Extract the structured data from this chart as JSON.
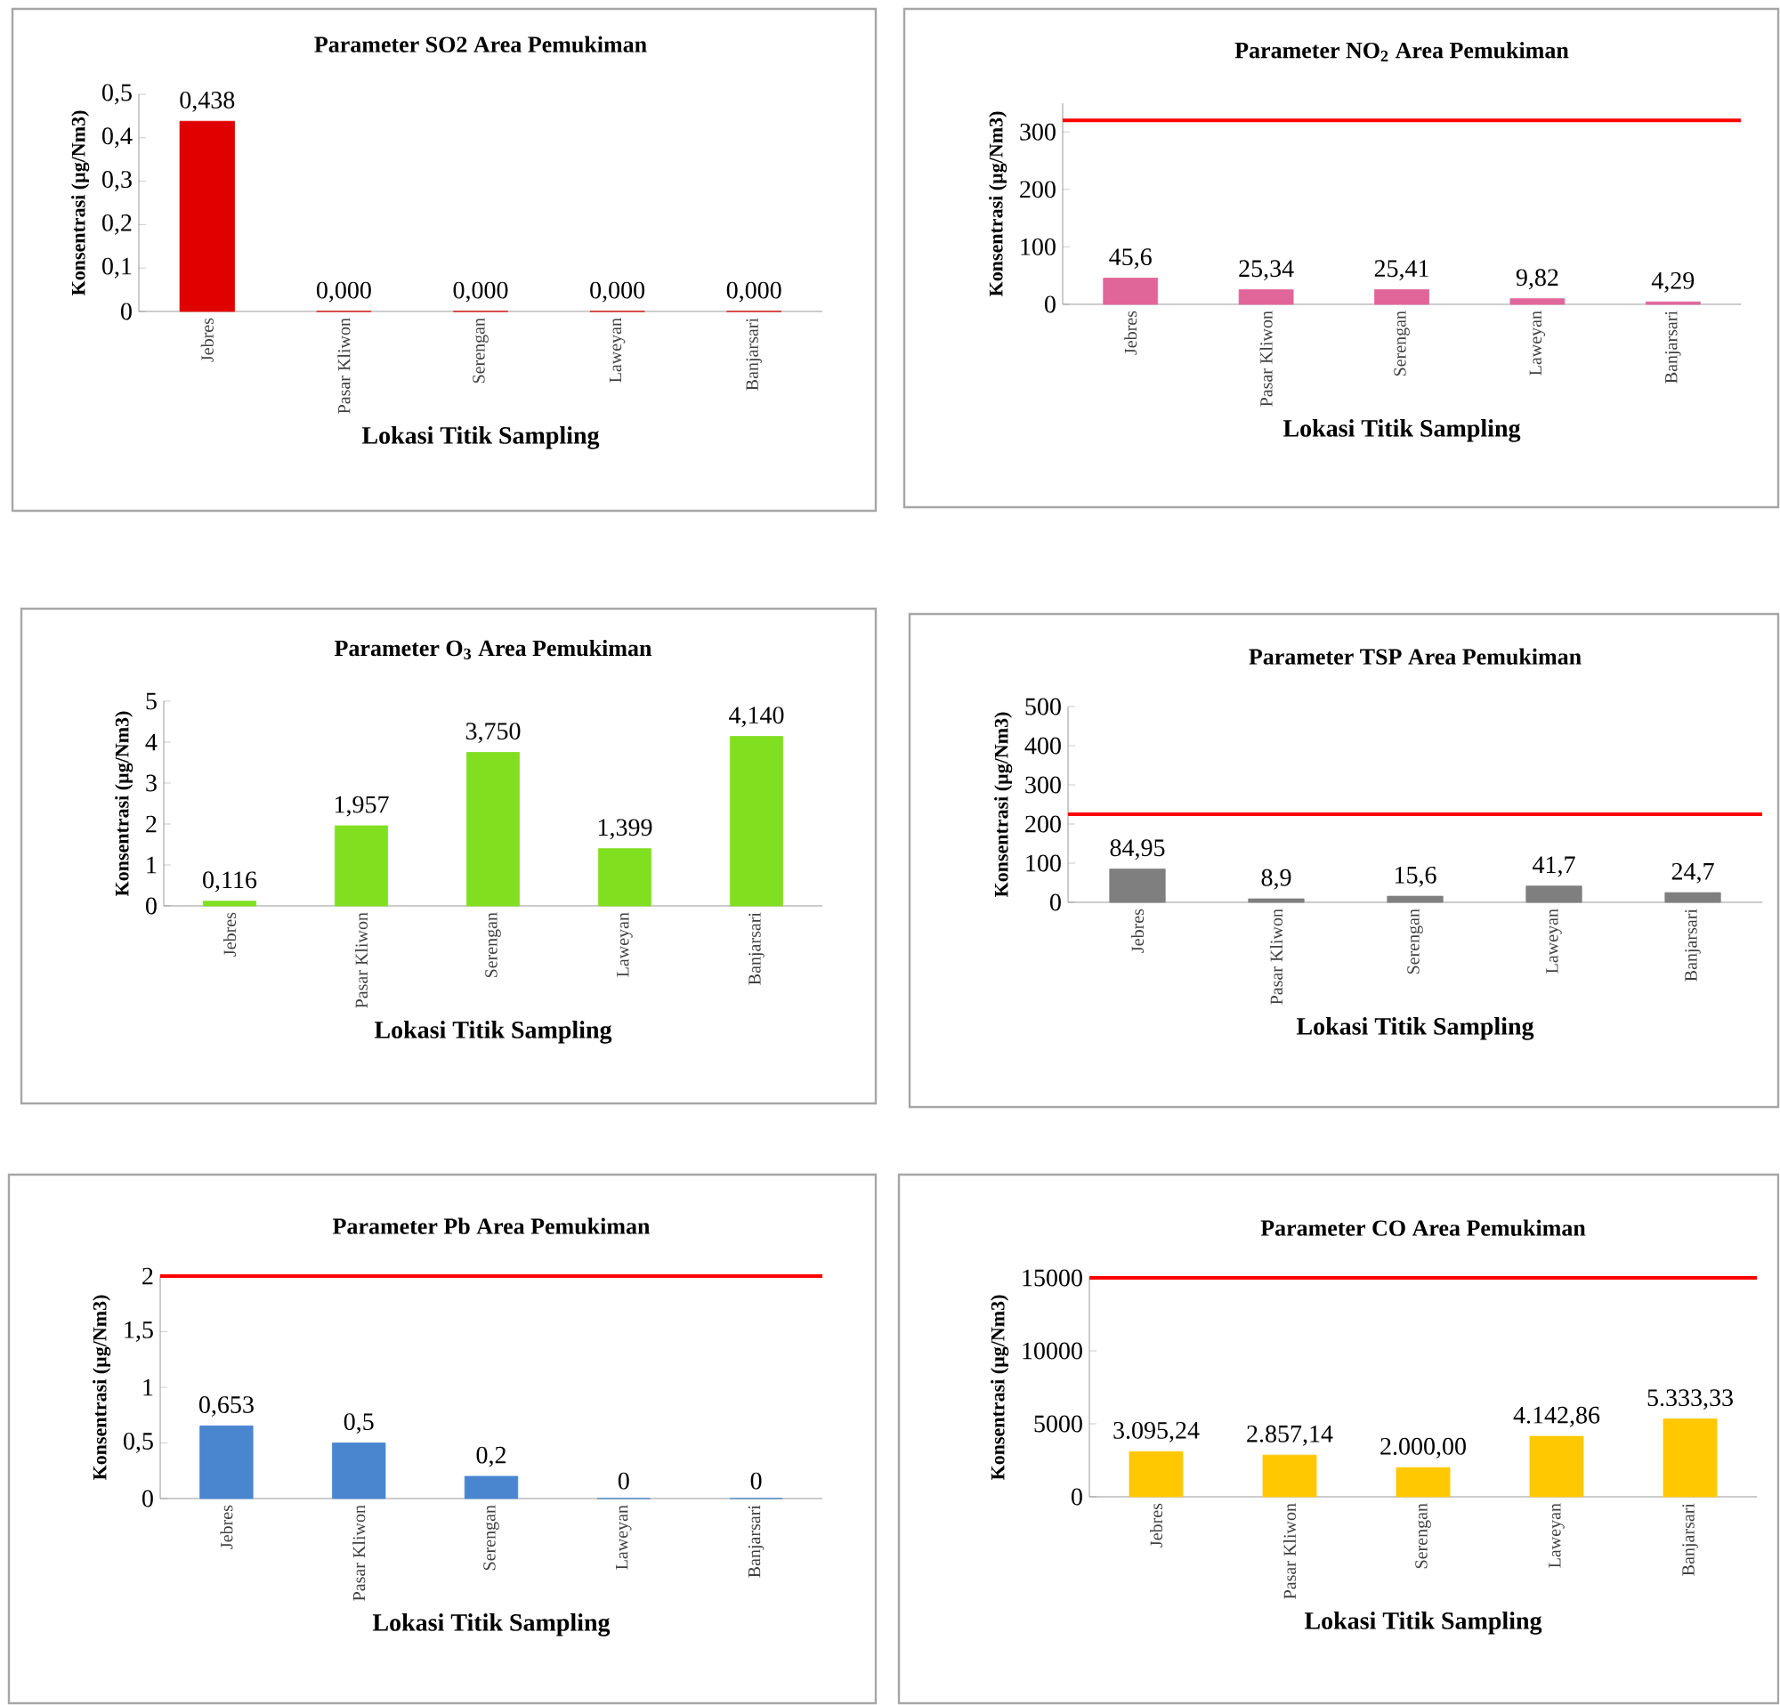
{
  "chart_data": [
    {
      "type": "bar",
      "title": "Parameter SO2 Area Pemukiman",
      "xlabel": "Lokasi Titik Sampling",
      "ylabel": "Konsentrasi (µg/Nm3)",
      "categories": [
        "Jebres",
        "Pasar Kliwon",
        "Serengan",
        "Laweyan",
        "Banjarsari"
      ],
      "values": [
        0.438,
        0,
        0,
        0,
        0
      ],
      "value_labels": [
        "0,438",
        "0,000",
        "0,000",
        "0,000",
        "0,000"
      ],
      "color": "#e00000",
      "ylim": [
        0,
        0.5
      ],
      "yticks": [
        0,
        {
          "value": 0.1,
          "label": "0,1"
        },
        {
          "value": 0.2,
          "label": "0,2"
        },
        {
          "value": 0.3,
          "label": "0,3"
        },
        {
          "value": 0.4,
          "label": "0,4"
        },
        {
          "value": 0.5,
          "label": "0,5"
        }
      ]
    },
    {
      "type": "bar",
      "title": "Parameter NO$_{2}$ Area Pemukiman",
      "xlabel": "Lokasi Titik Sampling",
      "ylabel": "Konsentrasi (µg/Nm3)",
      "categories": [
        "Jebres",
        "Pasar Kliwon",
        "Serengan",
        "Laweyan",
        "Banjarsari"
      ],
      "values": [
        45.6,
        25.34,
        25.41,
        9.82,
        4.29
      ],
      "value_labels": [
        "45,6",
        "25,34",
        "25,41",
        "9,82",
        "4,29"
      ],
      "color": "#e0669a",
      "ylim": [
        0,
        350
      ],
      "yticks": [
        0,
        100,
        200,
        300
      ],
      "ref_lines": [
        {
          "axis": "y",
          "value": 320,
          "color": "#ff0000"
        }
      ]
    },
    {
      "type": "bar",
      "title": "Parameter O$_{3}$ Area Pemukiman",
      "xlabel": "Lokasi Titik Sampling",
      "ylabel": "Konsentrasi (µg/Nm3)",
      "categories": [
        "Jebres",
        "Pasar Kliwon",
        "Serengan",
        "Laweyan",
        "Banjarsari"
      ],
      "values": [
        0.116,
        1.957,
        3.75,
        1.399,
        4.14
      ],
      "value_labels": [
        "0,116",
        "1,957",
        "3,750",
        "1,399",
        "4,140"
      ],
      "color": "#80e020",
      "ylim": [
        0,
        5
      ],
      "yticks": [
        0,
        1,
        2,
        3,
        4,
        5
      ]
    },
    {
      "type": "bar",
      "title": "Parameter TSP Area Pemukiman",
      "xlabel": "Lokasi Titik Sampling",
      "ylabel": "Konsentrasi (µg/Nm3)",
      "categories": [
        "Jebres",
        "Pasar Kliwon",
        "Serengan",
        "Laweyan",
        "Banjarsari"
      ],
      "values": [
        84.95,
        8.9,
        15.6,
        41.7,
        24.7
      ],
      "value_labels": [
        "84,95",
        "8,9",
        "15,6",
        "41,7",
        "24,7"
      ],
      "color": "#7f7f7f",
      "ylim": [
        0,
        500
      ],
      "yticks": [
        0,
        100,
        200,
        300,
        400,
        500
      ],
      "ref_lines": [
        {
          "axis": "y",
          "value": 225,
          "color": "#ff0000"
        }
      ]
    },
    {
      "type": "bar",
      "title": "Parameter Pb Area Pemukiman",
      "xlabel": "Lokasi Titik Sampling",
      "ylabel": "Konsentrasi (µg/Nm3)",
      "categories": [
        "Jebres",
        "Pasar Kliwon",
        "Serengan",
        "Laweyan",
        "Banjarsari"
      ],
      "values": [
        0.653,
        0.5,
        0.2,
        0,
        0
      ],
      "value_labels": [
        "0,653",
        "0,5",
        "0,2",
        "0",
        "0"
      ],
      "color": "#4a86d0",
      "ylim": [
        0,
        2
      ],
      "yticks": [
        0,
        {
          "value": 0.5,
          "label": "0,5"
        },
        1,
        {
          "value": 1.5,
          "label": "1,5"
        },
        2
      ],
      "ref_lines": [
        {
          "axis": "y",
          "value": 2,
          "color": "#ff0000"
        }
      ]
    },
    {
      "type": "bar",
      "title": "Parameter CO Area Pemukiman",
      "xlabel": "Lokasi Titik Sampling",
      "ylabel": "Konsentrasi (µg/Nm3)",
      "categories": [
        "Jebres",
        "Pasar Kliwon",
        "Serengan",
        "Laweyan",
        "Banjarsari"
      ],
      "values": [
        3095.24,
        2857.14,
        2000.0,
        4142.86,
        5333.33
      ],
      "value_labels": [
        "3.095,24",
        "2.857,14",
        "2.000,00",
        "4.142,86",
        "5.333,33"
      ],
      "color": "#ffc800",
      "ylim": [
        0,
        15000
      ],
      "yticks": [
        0,
        5000,
        10000,
        15000
      ],
      "ref_lines": [
        {
          "axis": "y",
          "value": 15000,
          "color": "#ff0000"
        }
      ]
    }
  ]
}
